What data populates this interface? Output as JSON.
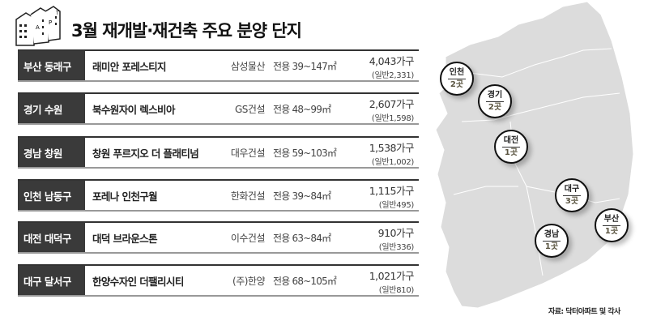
{
  "title": "3월 재개발·재건축 주요 분양 단지",
  "logo_letters": [
    "A",
    "P",
    "T"
  ],
  "rows": [
    {
      "region": "부산 동래구",
      "name": "래미안 포레스티지",
      "builder": "삼성물산",
      "area": "전용 39~147㎡",
      "units": "4,043가구",
      "general": "(일반2,331)"
    },
    {
      "region": "경기 수원",
      "name": "북수원자이 렉스비아",
      "builder": "GS건설",
      "area": "전용 48~99㎡",
      "units": "2,607가구",
      "general": "(일반1,598)"
    },
    {
      "region": "경남 창원",
      "name": "창원 푸르지오 더 플래티넘",
      "builder": "대우건설",
      "area": "전용 59~103㎡",
      "units": "1,538가구",
      "general": "(일반1,002)"
    },
    {
      "region": "인천 남동구",
      "name": "포레나 인천구월",
      "builder": "한화건설",
      "area": "전용 39~84㎡",
      "units": "1,115가구",
      "general": "(일반495)"
    },
    {
      "region": "대전 대덕구",
      "name": "대덕 브라운스톤",
      "builder": "이수건설",
      "area": "전용 63~84㎡",
      "units": "910가구",
      "general": "(일반336)"
    },
    {
      "region": "대구 달서구",
      "name": "한양수자인 더팰리시티",
      "builder": "(주)한양",
      "area": "전용 68~105㎡",
      "units": "1,021가구",
      "general": "(일반810)"
    }
  ],
  "map_pins": [
    {
      "city": "인천",
      "count": "2곳"
    },
    {
      "city": "경기",
      "count": "2곳"
    },
    {
      "city": "대전",
      "count": "1곳"
    },
    {
      "city": "대구",
      "count": "3곳"
    },
    {
      "city": "부산",
      "count": "1곳"
    },
    {
      "city": "경남",
      "count": "1곳"
    }
  ],
  "source": "자료: 닥터아파트 및 각사",
  "colors": {
    "label_bg": "#3a3a3a",
    "map": "#dcdcdc"
  }
}
